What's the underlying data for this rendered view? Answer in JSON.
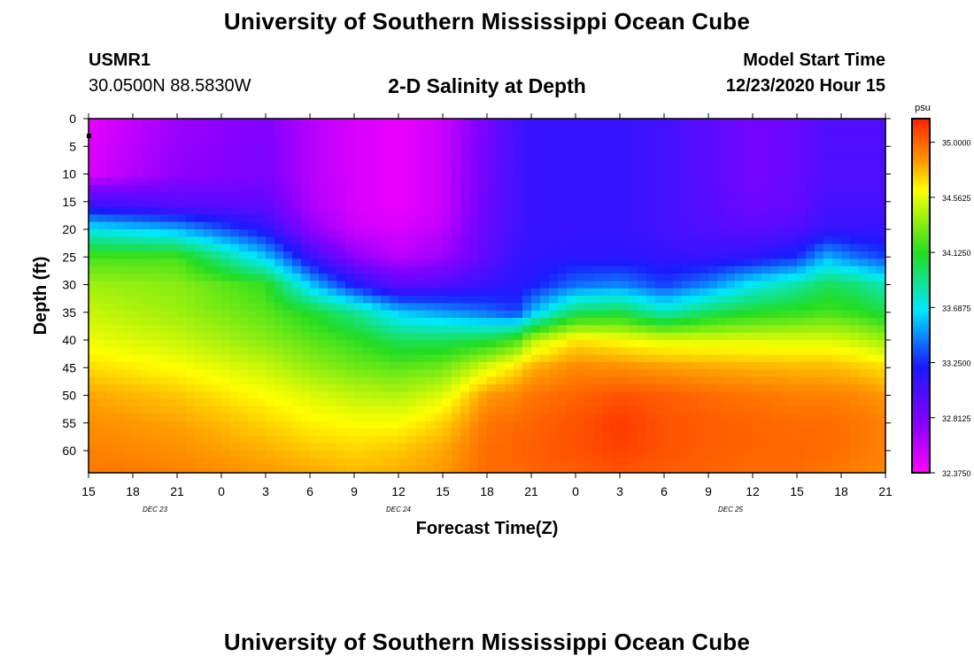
{
  "header": {
    "title": "University of Southern Mississippi Ocean Cube",
    "station_id": "USMR1",
    "coords": "30.0500N 88.5830W",
    "subtitle": "2-D Salinity at Depth",
    "model_start_label": "Model Start Time",
    "model_start_value": "12/23/2020 Hour 15",
    "footer_title": "University of Southern Mississippi Ocean Cube"
  },
  "colors": {
    "magenta": "#ff00ff",
    "violet": "#8800ff",
    "blue": "#1a1aff",
    "cyan": "#00e8ff",
    "green": "#22dd22",
    "yellow": "#ffff00",
    "orange": "#ff9900",
    "red": "#ff2200",
    "frame": "#000000"
  },
  "chart_data": {
    "type": "heatmap",
    "title": "2-D Salinity at Depth",
    "xlabel": "Forecast Time(Z)",
    "ylabel": "Depth (ft)",
    "units": "psu",
    "x_hours_range": [
      0,
      54
    ],
    "x_ticks": [
      {
        "h": 0,
        "label": "15"
      },
      {
        "h": 3,
        "label": "18"
      },
      {
        "h": 6,
        "label": "21"
      },
      {
        "h": 9,
        "label": "0"
      },
      {
        "h": 12,
        "label": "3"
      },
      {
        "h": 15,
        "label": "6"
      },
      {
        "h": 18,
        "label": "9"
      },
      {
        "h": 21,
        "label": "12"
      },
      {
        "h": 24,
        "label": "15"
      },
      {
        "h": 27,
        "label": "18"
      },
      {
        "h": 30,
        "label": "21"
      },
      {
        "h": 33,
        "label": "0"
      },
      {
        "h": 36,
        "label": "3"
      },
      {
        "h": 39,
        "label": "6"
      },
      {
        "h": 42,
        "label": "9"
      },
      {
        "h": 45,
        "label": "12"
      },
      {
        "h": 48,
        "label": "15"
      },
      {
        "h": 51,
        "label": "18"
      },
      {
        "h": 54,
        "label": "21"
      }
    ],
    "date_labels": [
      {
        "h": 4.5,
        "label": "DEC 23"
      },
      {
        "h": 21,
        "label": "DEC 24"
      },
      {
        "h": 43.5,
        "label": "DEC 25"
      }
    ],
    "y_range": [
      0,
      64
    ],
    "y_ticks": [
      0,
      5,
      10,
      15,
      20,
      25,
      30,
      35,
      40,
      45,
      50,
      55,
      60
    ],
    "colorbar": {
      "range": [
        32.375,
        35.1875
      ],
      "tick_values": [
        35.0,
        34.5625,
        34.125,
        33.6875,
        33.25,
        32.8125,
        32.375
      ],
      "tick_labels": [
        "35.0000",
        "34.5625",
        "34.1250",
        "33.6875",
        "33.2500",
        "32.8125",
        "32.3750"
      ],
      "label": "psu"
    },
    "profiles": {
      "time_h": [
        0,
        6,
        12,
        15,
        18,
        21,
        24,
        27,
        29,
        30,
        33,
        36,
        39,
        42,
        45,
        48,
        50,
        52,
        54
      ],
      "depth_ft": [
        0,
        10,
        16,
        20,
        25,
        30,
        35,
        40,
        45,
        50,
        55,
        60,
        64
      ],
      "salinity_psu": [
        [
          32.45,
          32.5,
          33.15,
          33.7,
          34.2,
          34.4,
          34.5,
          34.58,
          34.7,
          34.82,
          34.88,
          34.92,
          34.95
        ],
        [
          32.7,
          32.75,
          33.0,
          33.55,
          34.2,
          34.35,
          34.4,
          34.5,
          34.62,
          34.75,
          34.83,
          34.88,
          34.92
        ],
        [
          32.8,
          32.82,
          32.95,
          33.15,
          33.6,
          34.15,
          34.25,
          34.35,
          34.5,
          34.62,
          34.72,
          34.8,
          34.85
        ],
        [
          32.62,
          32.62,
          32.65,
          32.75,
          33.1,
          33.6,
          34.1,
          34.25,
          34.38,
          34.55,
          34.65,
          34.75,
          34.82
        ],
        [
          32.5,
          32.5,
          32.5,
          32.55,
          32.75,
          33.2,
          33.9,
          34.15,
          34.3,
          34.48,
          34.62,
          34.72,
          34.78
        ],
        [
          32.45,
          32.45,
          32.45,
          32.5,
          32.6,
          32.95,
          33.6,
          34.0,
          34.25,
          34.45,
          34.62,
          34.75,
          34.8
        ],
        [
          32.55,
          32.55,
          32.55,
          32.6,
          32.7,
          33.0,
          33.5,
          34.0,
          34.3,
          34.55,
          34.72,
          34.82,
          34.85
        ],
        [
          32.85,
          32.88,
          32.9,
          32.92,
          32.95,
          33.1,
          33.4,
          34.05,
          34.55,
          34.85,
          34.95,
          34.98,
          34.98
        ],
        [
          33.05,
          33.05,
          33.05,
          33.05,
          33.1,
          33.15,
          33.3,
          34.2,
          34.7,
          34.9,
          34.98,
          35.0,
          34.98
        ],
        [
          33.1,
          33.1,
          33.1,
          33.1,
          33.12,
          33.2,
          33.55,
          34.45,
          34.8,
          34.95,
          35.0,
          35.02,
          35.0
        ],
        [
          33.1,
          33.1,
          33.1,
          33.1,
          33.15,
          33.4,
          34.0,
          34.68,
          34.9,
          35.0,
          35.05,
          35.05,
          35.02
        ],
        [
          33.1,
          33.1,
          33.1,
          33.1,
          33.15,
          33.45,
          34.05,
          34.62,
          34.88,
          35.05,
          35.12,
          35.1,
          35.05
        ],
        [
          33.05,
          33.05,
          33.05,
          33.05,
          33.12,
          33.3,
          33.8,
          34.55,
          34.85,
          35.02,
          35.05,
          35.05,
          35.02
        ],
        [
          32.95,
          32.95,
          32.97,
          33.0,
          33.1,
          33.45,
          34.0,
          34.55,
          34.82,
          34.98,
          35.02,
          35.02,
          35.0
        ],
        [
          32.85,
          32.85,
          32.88,
          32.95,
          33.15,
          33.7,
          34.1,
          34.55,
          34.8,
          34.95,
          35.0,
          35.0,
          34.98
        ],
        [
          32.9,
          32.9,
          32.92,
          33.0,
          33.25,
          33.85,
          34.15,
          34.55,
          34.78,
          34.92,
          34.98,
          35.0,
          34.98
        ],
        [
          33.0,
          33.0,
          33.05,
          33.1,
          33.55,
          34.0,
          34.2,
          34.55,
          34.78,
          34.92,
          34.98,
          34.98,
          34.95
        ],
        [
          33.0,
          33.0,
          33.05,
          33.1,
          33.4,
          33.95,
          34.15,
          34.5,
          34.75,
          34.9,
          34.95,
          34.95,
          34.92
        ],
        [
          33.0,
          33.0,
          33.05,
          33.1,
          33.3,
          33.8,
          34.05,
          34.4,
          34.7,
          34.85,
          34.92,
          34.92,
          34.9
        ]
      ]
    }
  }
}
